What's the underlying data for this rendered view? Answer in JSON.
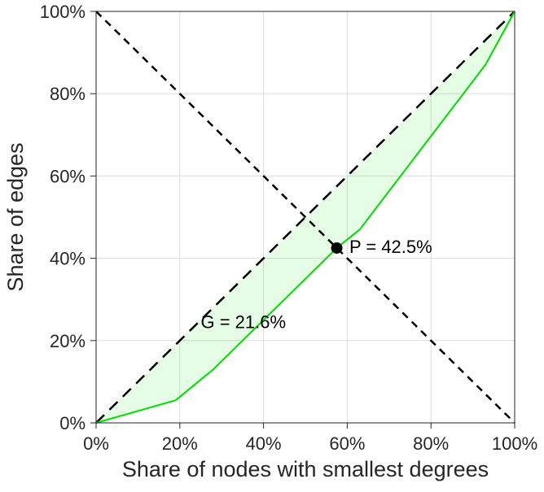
{
  "figure": {
    "background_color": "#ffffff"
  },
  "chart_data": {
    "type": "line",
    "title": "",
    "xlabel": "Share of nodes with smallest degrees",
    "ylabel": "Share of edges",
    "xlim": [
      0,
      100
    ],
    "ylim": [
      0,
      100
    ],
    "xticks": [
      0,
      20,
      40,
      60,
      80,
      100
    ],
    "yticks": [
      0,
      20,
      40,
      60,
      80,
      100
    ],
    "tick_suffix": "%",
    "grid": true,
    "legend": "none",
    "style": {
      "grid_color": "#dcdcdc",
      "axis_color": "#262626",
      "curve_color": "#00dd00",
      "fill_color": "rgba(0,221,0,0.10)",
      "dash_color": "#000000"
    },
    "series": [
      {
        "name": "diagonal-equality-line",
        "color": "#000000",
        "width": 2.5,
        "dash": "14 9",
        "points": [
          [
            0,
            0
          ],
          [
            100,
            100
          ]
        ]
      },
      {
        "name": "anti-diagonal-line",
        "color": "#000000",
        "width": 2.5,
        "dash": "9 7",
        "points": [
          [
            0,
            100
          ],
          [
            100,
            0
          ]
        ]
      },
      {
        "name": "degree-lorenz-curve",
        "color": "#00dd00",
        "width": 2,
        "fill": true,
        "fill_color": "rgba(0,221,0,0.10)",
        "points": [
          [
            0,
            0
          ],
          [
            19,
            5.5
          ],
          [
            28,
            13
          ],
          [
            57.5,
            42.5
          ],
          [
            63,
            47
          ],
          [
            93,
            87
          ],
          [
            100,
            100
          ]
        ]
      }
    ],
    "marker": {
      "x": 57.5,
      "y": 42.5,
      "radius": 7,
      "color": "#000000"
    },
    "annotations": [
      {
        "id": "G",
        "text": "G = 21.6%",
        "x": 25,
        "y": 23,
        "anchor": "start"
      },
      {
        "id": "P",
        "text": "P = 42.5%",
        "x": 60.5,
        "y": 41.3,
        "anchor": "start"
      }
    ]
  }
}
